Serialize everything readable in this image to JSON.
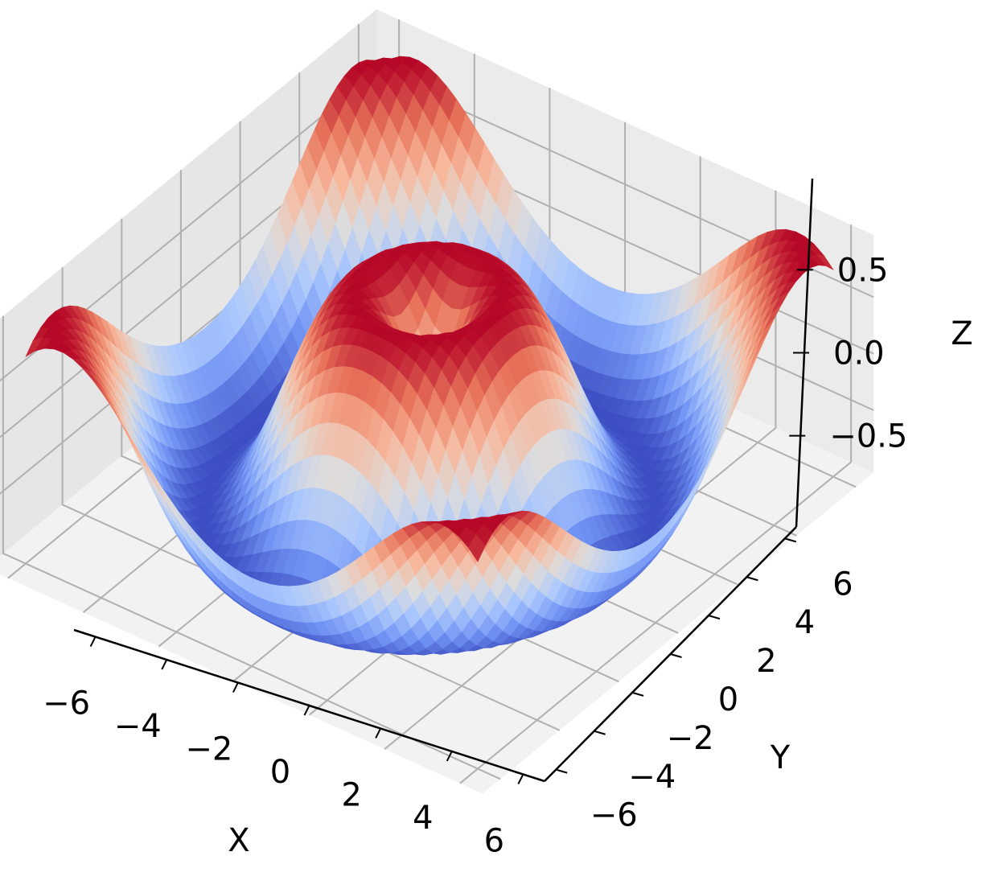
{
  "chart_data": {
    "type": "surface",
    "title": "",
    "function": "z = sin(sqrt(x^2 + y^2))",
    "colormap": "coolwarm",
    "colormap_colors": [
      "#3b4cc0",
      "#6f92f3",
      "#aac7fd",
      "#dddcdc",
      "#f7b89c",
      "#e7745b",
      "#b40426"
    ],
    "x_range": [
      -6,
      6
    ],
    "y_range": [
      -6,
      6
    ],
    "z_range": [
      -1,
      1
    ],
    "xlabel": "X",
    "ylabel": "Y",
    "zlabel": "Z",
    "x_ticks": [
      -6,
      -4,
      -2,
      0,
      2,
      4,
      6
    ],
    "y_ticks": [
      -6,
      -4,
      -2,
      0,
      2,
      4,
      6
    ],
    "z_ticks": [
      -0.5,
      0.0,
      0.5
    ],
    "x_tick_labels": [
      "−6",
      "−4",
      "−2",
      "0",
      "2",
      "4",
      "6"
    ],
    "y_tick_labels": [
      "−6",
      "−4",
      "−2",
      "0",
      "2",
      "4",
      "6"
    ],
    "z_tick_labels": [
      "−0.5",
      "0.0",
      "0.5"
    ],
    "view": {
      "elev": 30,
      "azim": -60
    },
    "grid": true,
    "pane_color": "#f2f2f2",
    "grid_color": "#b0b0b0"
  }
}
